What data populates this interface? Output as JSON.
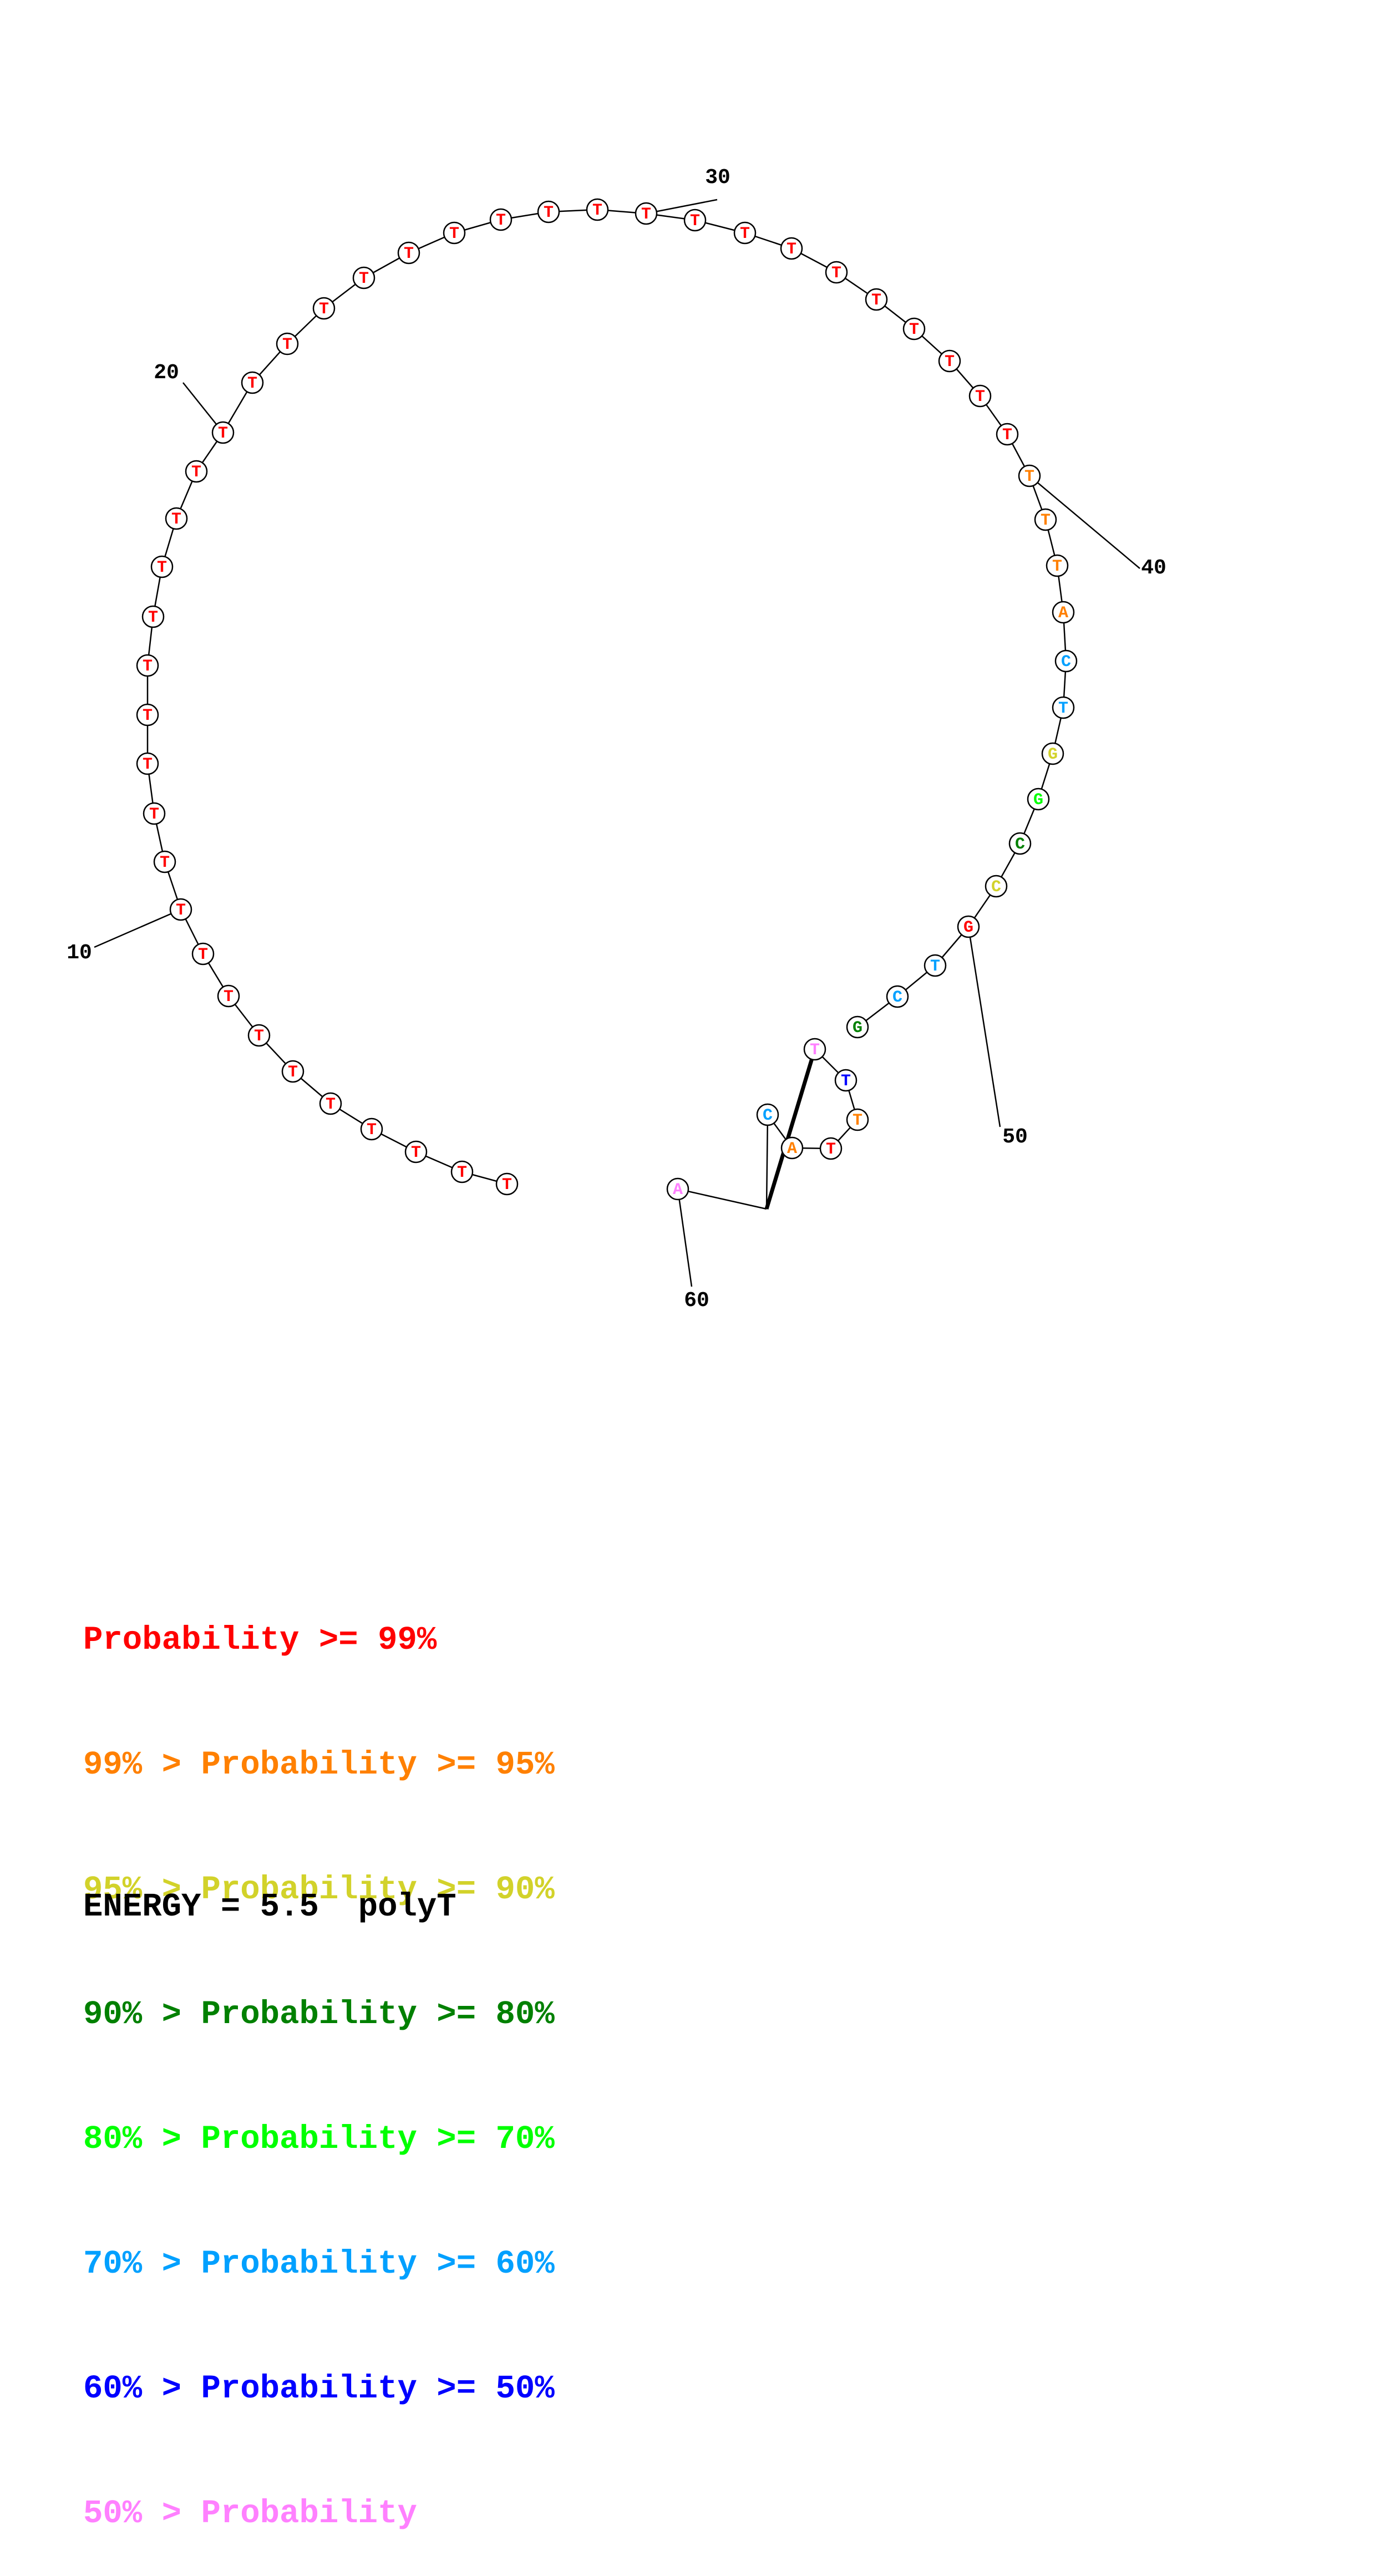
{
  "structure": {
    "sequence": [
      "T",
      "T",
      "T",
      "T",
      "T",
      "T",
      "T",
      "T",
      "T",
      "T",
      "T",
      "T",
      "T",
      "T",
      "T",
      "T",
      "T",
      "T",
      "T",
      "T",
      "T",
      "T",
      "T",
      "T",
      "T",
      "T",
      "T",
      "T",
      "T",
      "T",
      "T",
      "T",
      "T",
      "T",
      "T",
      "T",
      "T",
      "T",
      "T",
      "T",
      "T",
      "T",
      "A",
      "C",
      "T",
      "G",
      "G",
      "C",
      "C",
      "G",
      "T",
      "C",
      "G",
      "T",
      "T",
      "T",
      "T",
      "A",
      "C",
      "A"
    ],
    "probability_class": [
      0,
      0,
      0,
      0,
      0,
      0,
      0,
      0,
      0,
      0,
      0,
      0,
      0,
      0,
      0,
      0,
      0,
      0,
      0,
      0,
      0,
      0,
      0,
      0,
      0,
      0,
      0,
      0,
      0,
      0,
      0,
      0,
      0,
      0,
      0,
      0,
      0,
      0,
      0,
      1,
      1,
      1,
      1,
      5,
      5,
      2,
      4,
      3,
      2,
      0,
      5,
      5,
      3,
      7,
      6,
      1,
      0,
      1,
      5,
      7
    ],
    "base_pairs": [
      [
        53,
        59
      ]
    ],
    "tick_labels": [
      "10",
      "20",
      "30",
      "40",
      "50",
      "60"
    ]
  },
  "legend": {
    "colors": [
      "#ff0000",
      "#ff8000",
      "#d2d22a",
      "#008000",
      "#00ff00",
      "#00a0ff",
      "#0000ff",
      "#ff80ff"
    ],
    "rows": [
      {
        "prefix": "",
        "mid": "Probability >= ",
        "suffix": "99%"
      },
      {
        "prefix": "99% > ",
        "mid": "Probability >= ",
        "suffix": "95%"
      },
      {
        "prefix": "95% > ",
        "mid": "Probability >= ",
        "suffix": "90%"
      },
      {
        "prefix": "90% > ",
        "mid": "Probability >= ",
        "suffix": "80%"
      },
      {
        "prefix": "80% > ",
        "mid": "Probability >= ",
        "suffix": "70%"
      },
      {
        "prefix": "70% > ",
        "mid": "Probability >= ",
        "suffix": "60%"
      },
      {
        "prefix": "60% > ",
        "mid": "Probability >= ",
        "suffix": "50%"
      },
      {
        "prefix": "50% > ",
        "mid": "Probability",
        "suffix": ""
      }
    ]
  },
  "energy": {
    "label": "ENERGY = ",
    "value": "5.5",
    "name": "polyT"
  }
}
